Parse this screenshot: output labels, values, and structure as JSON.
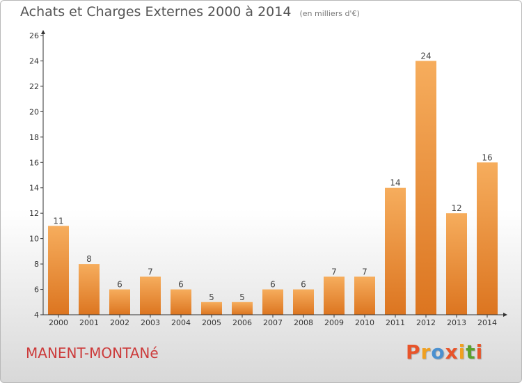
{
  "header": {
    "title": "Achats et Charges Externes 2000 à 2014",
    "subtitle": "(en milliers d'€)"
  },
  "commune": "MANENT-MONTANé",
  "logo": {
    "text": "Proxiti",
    "letter_colors": [
      "#e8542a",
      "#f0a020",
      "#4a90d0",
      "#e8542a",
      "#f0a020",
      "#5aa02c",
      "#e8542a"
    ]
  },
  "colors": {
    "bar_light": "#f6ad5d",
    "bar_dark": "#dc7520",
    "axis": "#333333",
    "grid": "#cccccc"
  },
  "chart_data": {
    "type": "bar",
    "categories": [
      "2000",
      "2001",
      "2002",
      "2003",
      "2004",
      "2005",
      "2006",
      "2007",
      "2008",
      "2009",
      "2010",
      "2011",
      "2012",
      "2013",
      "2014"
    ],
    "values": [
      11,
      8,
      6,
      7,
      6,
      5,
      5,
      6,
      6,
      7,
      7,
      14,
      24,
      12,
      16
    ],
    "ylim": [
      4,
      26
    ],
    "yticks": [
      4,
      6,
      8,
      10,
      12,
      14,
      16,
      18,
      20,
      22,
      24,
      26
    ],
    "xlabel": "",
    "ylabel": "",
    "grid": false
  }
}
